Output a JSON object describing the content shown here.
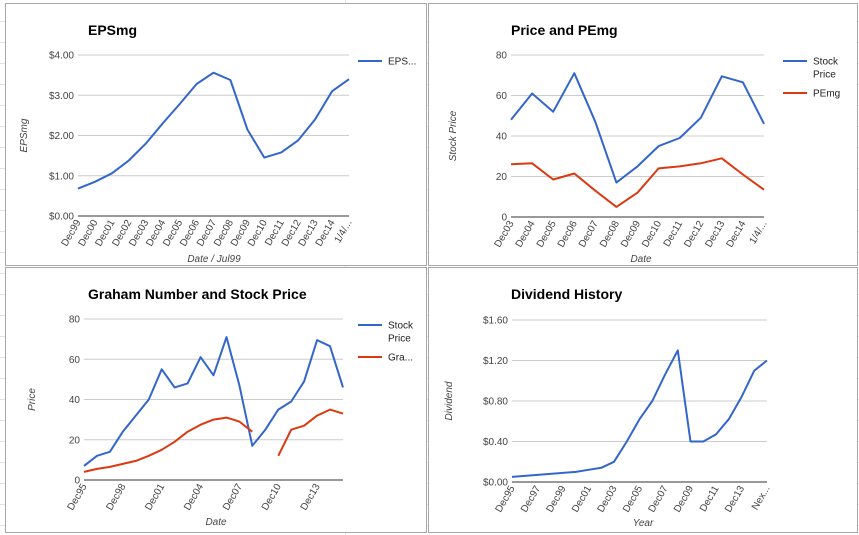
{
  "colors": {
    "blue": "#3366cc",
    "red": "#dc3912",
    "grid": "#cccccc",
    "axis": "#333333"
  },
  "chart_data": [
    {
      "id": "p1",
      "type": "line",
      "title": "EPSmg",
      "xlabel": "Date / Jul99",
      "ylabel": "EPSmg",
      "ylim": [
        0,
        4
      ],
      "yticks": [
        "$0.00",
        "$1.00",
        "$2.00",
        "$3.00",
        "$4.00"
      ],
      "categories": [
        "Dec99",
        "Dec00",
        "Dec01",
        "Dec02",
        "Dec03",
        "Dec04",
        "Dec05",
        "Dec06",
        "Dec07",
        "Dec08",
        "Dec09",
        "Dec10",
        "Dec11",
        "Dec12",
        "Dec13",
        "Dec14",
        "1/4/..."
      ],
      "series": [
        {
          "name": "EPS...",
          "color": "#3366cc",
          "values": [
            0.68,
            0.85,
            1.06,
            1.38,
            1.8,
            2.3,
            2.78,
            3.28,
            3.56,
            3.38,
            2.15,
            1.45,
            1.58,
            1.88,
            2.4,
            3.1,
            3.4
          ]
        }
      ]
    },
    {
      "id": "p2",
      "type": "line",
      "title": "Price and PEmg",
      "xlabel": "Date",
      "ylabel": "Stock Price",
      "ylim": [
        0,
        80
      ],
      "yticks": [
        "0",
        "20",
        "40",
        "60",
        "80"
      ],
      "categories": [
        "Dec03",
        "Dec04",
        "Dec05",
        "Dec06",
        "Dec07",
        "Dec08",
        "Dec09",
        "Dec10",
        "Dec11",
        "Dec12",
        "Dec13",
        "Dec14",
        "1/4/..."
      ],
      "series": [
        {
          "name": "Stock Price",
          "legend_lines": [
            "Stock",
            "Price"
          ],
          "color": "#3366cc",
          "values": [
            48,
            61,
            52,
            71,
            47,
            17,
            25,
            35,
            39,
            49,
            69.5,
            66.5,
            46
          ]
        },
        {
          "name": "PEmg",
          "legend_lines": [
            "PEmg"
          ],
          "color": "#dc3912",
          "values": [
            26,
            26.5,
            18.5,
            21.5,
            13,
            5,
            12,
            24,
            25,
            26.5,
            29,
            21,
            13.5
          ]
        }
      ]
    },
    {
      "id": "p3",
      "type": "line",
      "title": "Graham Number and Stock Price",
      "xlabel": "Date",
      "ylabel": "Price",
      "ylim": [
        0,
        80
      ],
      "yticks": [
        "0",
        "20",
        "40",
        "60",
        "80"
      ],
      "categories": [
        "Dec95",
        "",
        "",
        "Dec98",
        "",
        "",
        "Dec01",
        "",
        "",
        "Dec04",
        "",
        "",
        "Dec07",
        "",
        "",
        "Dec10",
        "",
        "",
        "Dec13",
        "",
        ""
      ],
      "series": [
        {
          "name": "Stock Price",
          "legend_lines": [
            "Stock",
            "Price"
          ],
          "color": "#3366cc",
          "values": [
            7,
            12,
            14,
            24,
            32,
            40,
            55,
            46,
            48,
            61,
            52,
            71,
            47,
            17,
            25,
            35,
            39,
            49,
            69.5,
            66.5,
            46
          ]
        },
        {
          "name": "Graham Number",
          "legend_lines": [
            "Gra..."
          ],
          "color": "#dc3912",
          "values": [
            4,
            5.5,
            6.5,
            8,
            9.5,
            12,
            15,
            19,
            24,
            27.5,
            30,
            31,
            29,
            24,
            null,
            12,
            25,
            27,
            32,
            35,
            33
          ]
        }
      ]
    },
    {
      "id": "p4",
      "type": "line",
      "title": "Dividend History",
      "xlabel": "Year",
      "ylabel": "Dividend",
      "ylim": [
        0,
        1.6
      ],
      "yticks": [
        "$0.00",
        "$0.40",
        "$0.80",
        "$1.20",
        "$1.60"
      ],
      "categories": [
        "Dec95",
        "",
        "Dec97",
        "",
        "Dec99",
        "",
        "Dec01",
        "",
        "Dec03",
        "",
        "Dec05",
        "",
        "Dec07",
        "",
        "Dec09",
        "",
        "Dec11",
        "",
        "Dec13",
        "",
        "Nex..."
      ],
      "series": [
        {
          "name": "Dividend",
          "color": "#3366cc",
          "values": [
            0.05,
            0.06,
            0.07,
            0.08,
            0.09,
            0.1,
            0.12,
            0.14,
            0.2,
            0.4,
            0.62,
            0.8,
            1.06,
            1.3,
            0.4,
            0.4,
            0.47,
            0.62,
            0.84,
            1.1,
            1.2
          ]
        }
      ]
    }
  ]
}
